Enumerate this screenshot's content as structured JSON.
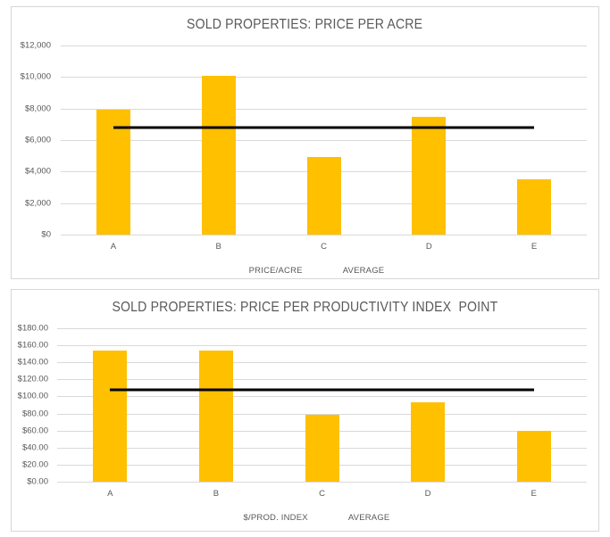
{
  "page": {
    "background": "#ffffff"
  },
  "chart_data": [
    {
      "type": "bar",
      "title": "SOLD PROPERTIES: PRICE PER ACRE",
      "categories": [
        "A",
        "B",
        "C",
        "D",
        "E"
      ],
      "series": [
        {
          "name": "PRICE/ACRE",
          "type": "bar",
          "color": "#FFC000",
          "values": [
            7950,
            10050,
            4950,
            7450,
            3500
          ]
        },
        {
          "name": "AVERAGE",
          "type": "line",
          "color": "#000000",
          "values": [
            6780,
            6780,
            6780,
            6780,
            6780
          ]
        }
      ],
      "ylim": [
        0,
        12000
      ],
      "ytick_step": 2000,
      "yticks_top_to_bottom": [
        "$12,000",
        "$10,000",
        "$8,000",
        "$6,000",
        "$4,000",
        "$2,000",
        "$0"
      ],
      "grid": true,
      "legend_position": "bottom",
      "text_color": "#595959",
      "gridline_color": "#d9d9d9"
    },
    {
      "type": "bar",
      "title": "SOLD PROPERTIES: PRICE PER PRODUCTIVITY INDEX  POINT",
      "categories": [
        "A",
        "B",
        "C",
        "D",
        "E"
      ],
      "series": [
        {
          "name": "$/PROD. INDEX",
          "type": "bar",
          "color": "#FFC000",
          "values": [
            153.5,
            153.5,
            78,
            93,
            60
          ]
        },
        {
          "name": "AVERAGE",
          "type": "line",
          "color": "#000000",
          "values": [
            107.6,
            107.6,
            107.6,
            107.6,
            107.6
          ]
        }
      ],
      "ylim": [
        0,
        180
      ],
      "ytick_step": 20,
      "yticks_top_to_bottom": [
        "$180.00",
        "$160.00",
        "$140.00",
        "$120.00",
        "$100.00",
        "$80.00",
        "$60.00",
        "$40.00",
        "$20.00",
        "$0.00"
      ],
      "grid": true,
      "legend_position": "bottom",
      "text_color": "#595959",
      "gridline_color": "#d9d9d9"
    }
  ]
}
